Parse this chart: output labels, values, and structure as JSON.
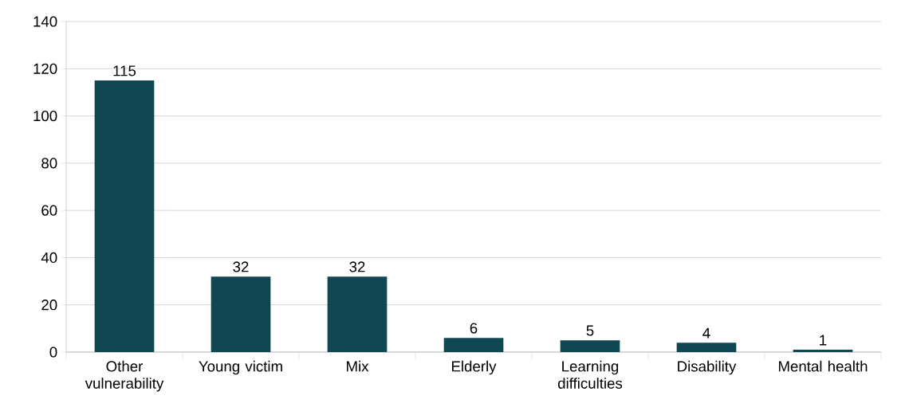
{
  "chart_data": {
    "type": "bar",
    "categories": [
      "Other vulnerability",
      "Young victim",
      "Mix",
      "Elderly",
      "Learning difficulties",
      "Disability",
      "Mental health"
    ],
    "values": [
      115,
      32,
      32,
      6,
      5,
      4,
      1
    ],
    "color": "#0f4752",
    "ylim": [
      0,
      140
    ],
    "yticks": [
      0,
      20,
      40,
      60,
      80,
      100,
      120,
      140
    ],
    "grid": "y",
    "data_labels": true
  }
}
